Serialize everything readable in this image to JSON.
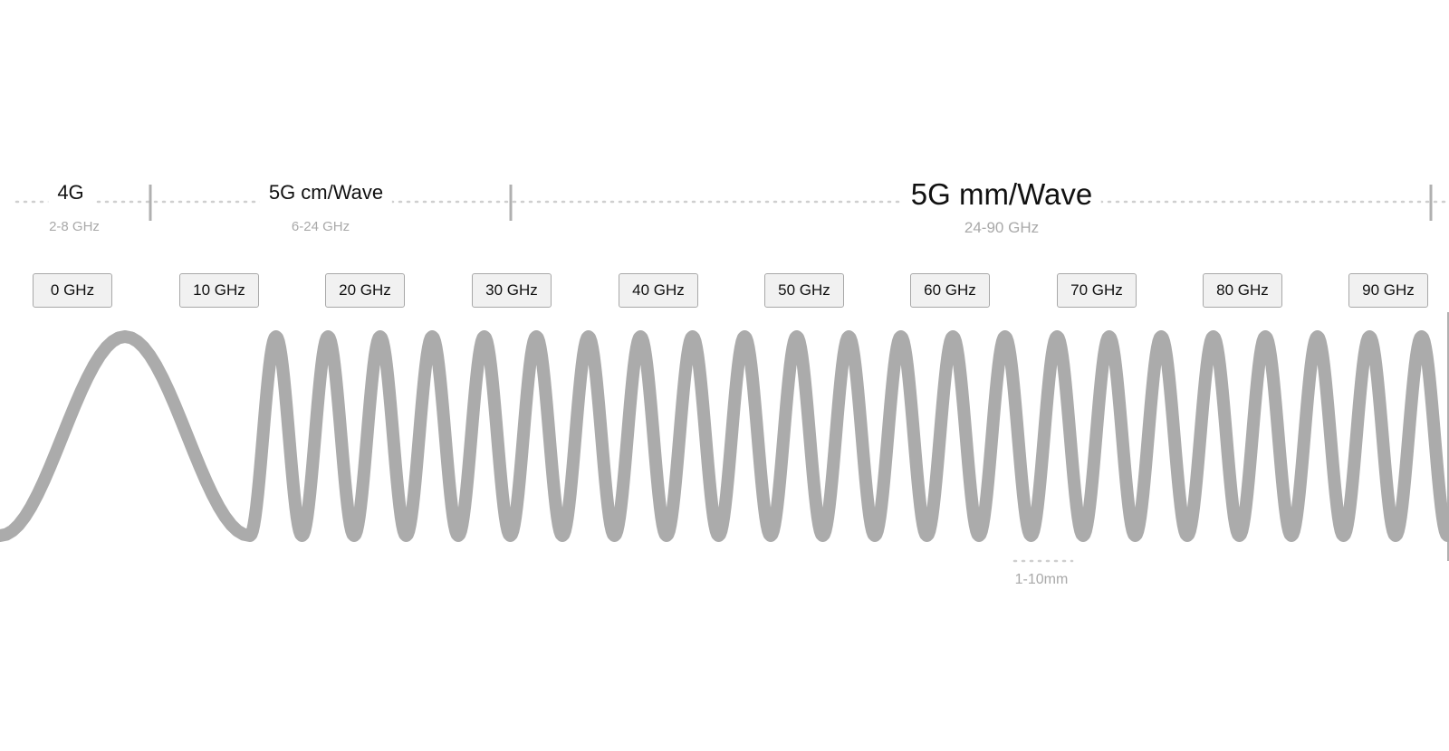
{
  "bands": [
    {
      "name": "4G",
      "range": "2-8 GHz"
    },
    {
      "name": "5G cm/Wave",
      "range": "6-24 GHz"
    },
    {
      "name": "5G mm/Wave",
      "range": "24-90 GHz"
    }
  ],
  "frequency_ticks": [
    "0 GHz",
    "10 GHz",
    "20 GHz",
    "30 GHz",
    "40 GHz",
    "50 GHz",
    "60 GHz",
    "70 GHz",
    "80 GHz",
    "90 GHz"
  ],
  "wavelength_annotation": "1-10mm",
  "colors": {
    "wave": "#ababab",
    "text": "#111111",
    "muted": "#a9a9a9",
    "tick_bg": "#f1f1f1",
    "tick_border": "#a8a8a8"
  }
}
